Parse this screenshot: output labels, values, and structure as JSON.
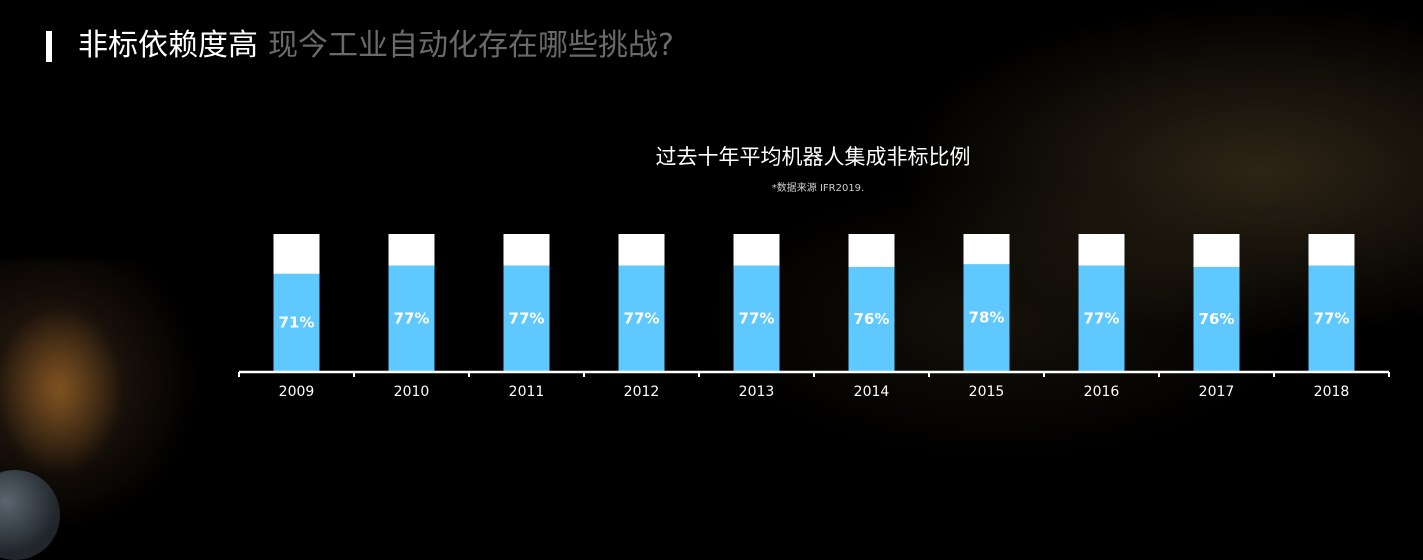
{
  "header": {
    "title_main": "非标依赖度高",
    "title_sub": "现今工业自动化存在哪些挑战?"
  },
  "colors": {
    "bar_fill": "#5ec8ff",
    "bar_remainder": "#ffffff",
    "axis": "#ffffff",
    "label_text": "#ffffff"
  },
  "chart_data": {
    "type": "bar",
    "stacked": true,
    "title": "过去十年平均机器人集成非标比例",
    "source": "*数据来源 IFR2019.",
    "categories": [
      "2009",
      "2010",
      "2011",
      "2012",
      "2013",
      "2014",
      "2015",
      "2016",
      "2017",
      "2018"
    ],
    "values": [
      71,
      77,
      77,
      77,
      77,
      76,
      78,
      77,
      76,
      77
    ],
    "value_labels": [
      "71%",
      "77%",
      "77%",
      "77%",
      "77%",
      "76%",
      "78%",
      "77%",
      "76%",
      "77%"
    ],
    "ylim": [
      0,
      100
    ],
    "grid": false,
    "legend": "none"
  }
}
